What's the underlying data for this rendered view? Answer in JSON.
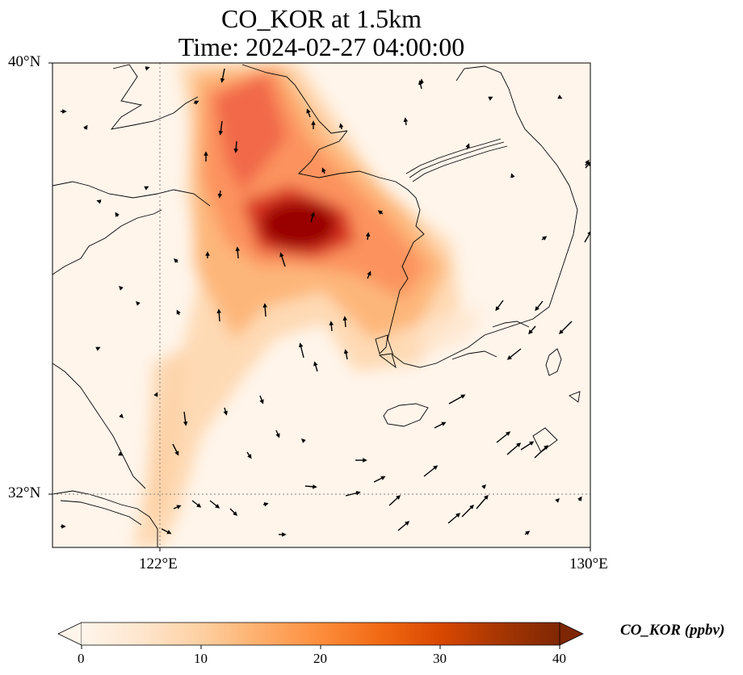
{
  "title": {
    "line1": "CO_KOR at 1.5km",
    "line2": "Time: 2024-02-27 04:00:00"
  },
  "axes": {
    "lat_labels": [
      "40°N",
      "32°N"
    ],
    "lon_labels": [
      "122°E",
      "130°E"
    ],
    "lon_range": [
      120,
      130
    ],
    "lat_range": [
      31,
      40
    ],
    "gridlines": "dotted at 122°E and 32°N"
  },
  "colorbar": {
    "label": "CO_KOR (ppbv)",
    "ticks": [
      "0",
      "10",
      "20",
      "30",
      "40"
    ],
    "min": 0,
    "max": 40,
    "extend": "both",
    "colormap": [
      "#fff5eb",
      "#fee6ce",
      "#fdd0a2",
      "#fdae6b",
      "#fd8d3c",
      "#f16913",
      "#d94801",
      "#a63603",
      "#7f2704"
    ]
  },
  "colors": {
    "background": "#fff5eb",
    "coastline": "#000000"
  }
}
